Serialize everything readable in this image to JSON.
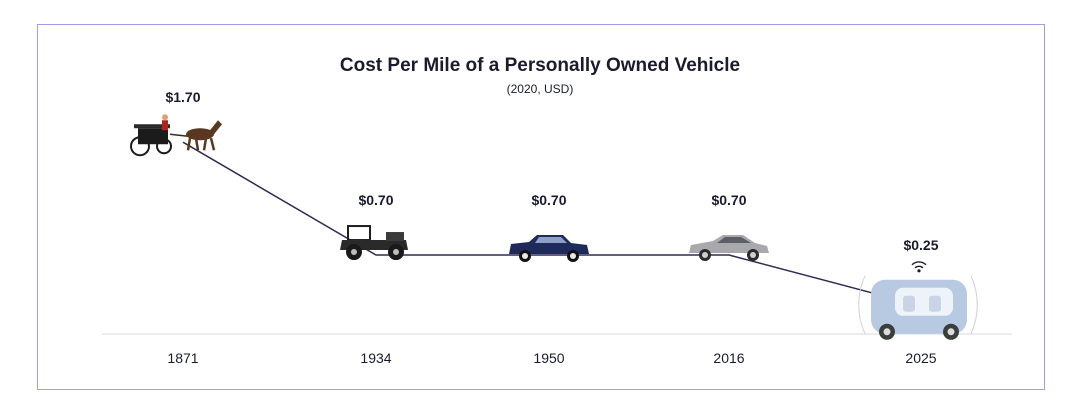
{
  "chart_data": {
    "type": "line",
    "title": "Cost Per Mile of a Personally Owned Vehicle",
    "subtitle": "(2020, USD)",
    "xlabel": "",
    "ylabel": "",
    "categories": [
      "1871",
      "1934",
      "1950",
      "2016",
      "2025"
    ],
    "values": [
      1.7,
      0.7,
      0.7,
      0.7,
      0.25
    ],
    "data_labels": [
      "$1.70",
      "$0.70",
      "$0.70",
      "$0.70",
      "$0.25"
    ],
    "ylim": [
      0,
      2.0
    ],
    "grid": false,
    "markers": [
      "horse-carriage-icon",
      "model-t-car-icon",
      "1950s-sedan-icon",
      "modern-sedan-icon",
      "autonomous-pod-icon"
    ],
    "colors": {
      "line": "#2e2a55",
      "axis": "#d9d9d9",
      "frame": "#a89ae8",
      "text": "#1a1c2e"
    }
  }
}
